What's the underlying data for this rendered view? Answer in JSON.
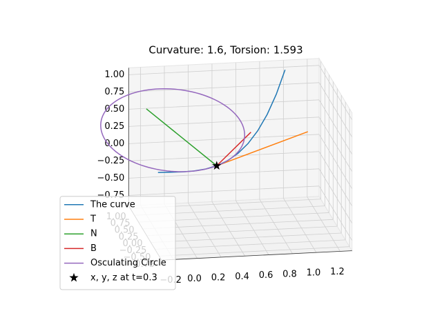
{
  "chart_data": {
    "type": "line3d",
    "title": "Curvature: 1.6, Torsion: 1.593",
    "xlim": [
      -0.3,
      1.3
    ],
    "ylim": [
      -0.9,
      1.1
    ],
    "zlim": [
      -0.9,
      1.1
    ],
    "xticks": [
      {
        "value": -0.2,
        "label": "−0.2"
      },
      {
        "value": 0,
        "label": "0.0"
      },
      0.2,
      0.4,
      0.6,
      0.8,
      {
        "value": 1,
        "label": "1.0"
      },
      1.2
    ],
    "yticks": [
      {
        "value": -0.75,
        "label": "−0.75"
      },
      {
        "value": -0.5,
        "label": "−0.50"
      },
      {
        "value": -0.25,
        "label": "−0.25"
      },
      {
        "value": 0,
        "label": "0.00"
      },
      {
        "value": 0.25,
        "label": "0.25"
      },
      {
        "value": 0.5,
        "label": "0.50"
      },
      {
        "value": 0.75,
        "label": "0.75"
      },
      {
        "value": 1,
        "label": "1.00"
      }
    ],
    "zticks": [
      {
        "value": -0.75,
        "label": "−0.75"
      },
      {
        "value": -0.5,
        "label": "−0.50"
      },
      {
        "value": -0.25,
        "label": "−0.25"
      },
      {
        "value": 0,
        "label": "0.00"
      },
      {
        "value": 0.25,
        "label": "0.25"
      },
      {
        "value": 0.5,
        "label": "0.50"
      },
      {
        "value": 0.75,
        "label": "0.75"
      },
      {
        "value": 1,
        "label": "1.00"
      }
    ],
    "grid": true,
    "legend": "lower left",
    "series": [
      {
        "name": "The curve",
        "color": "#1f77b4",
        "x": [
          -0.2,
          -0.1,
          0,
          0.1,
          0.2,
          0.3,
          0.4,
          0.5,
          0.6,
          0.7,
          0.8,
          0.9,
          1.0
        ],
        "y": [
          0.04,
          0.01,
          0,
          0.01,
          0.04,
          0.09,
          0.16,
          0.25,
          0.36,
          0.49,
          0.64,
          0.81,
          1
        ],
        "z": [
          -0.008,
          -0.001,
          0,
          0.001,
          0.008,
          0.027,
          0.064,
          0.125,
          0.216,
          0.343,
          0.512,
          0.729,
          1
        ]
      },
      {
        "name": "T",
        "color": "#ff7f0e",
        "x": [
          0.3,
          1.135
        ],
        "y": [
          0.09,
          0.591
        ],
        "z": [
          0.027,
          0.253
        ]
      },
      {
        "name": "N",
        "color": "#2ca02c",
        "x": [
          0.3,
          -0.213
        ],
        "y": [
          0.09,
          0.654
        ],
        "z": [
          0.027,
          0.674
        ]
      },
      {
        "name": "B",
        "color": "#d62728",
        "x": [
          0.3,
          0.497
        ],
        "y": [
          0.09,
          -0.566
        ],
        "z": [
          0.027,
          0.756
        ]
      }
    ],
    "circle": {
      "name": "Osculating Circle",
      "color": "#9467bd",
      "center": [
        -0.021,
        0.4425,
        0.431
      ],
      "radius": 0.625
    },
    "point": {
      "name": "x, y, z at t=0.3",
      "color": "#000000",
      "x": 0.3,
      "y": 0.09,
      "z": 0.027
    }
  }
}
